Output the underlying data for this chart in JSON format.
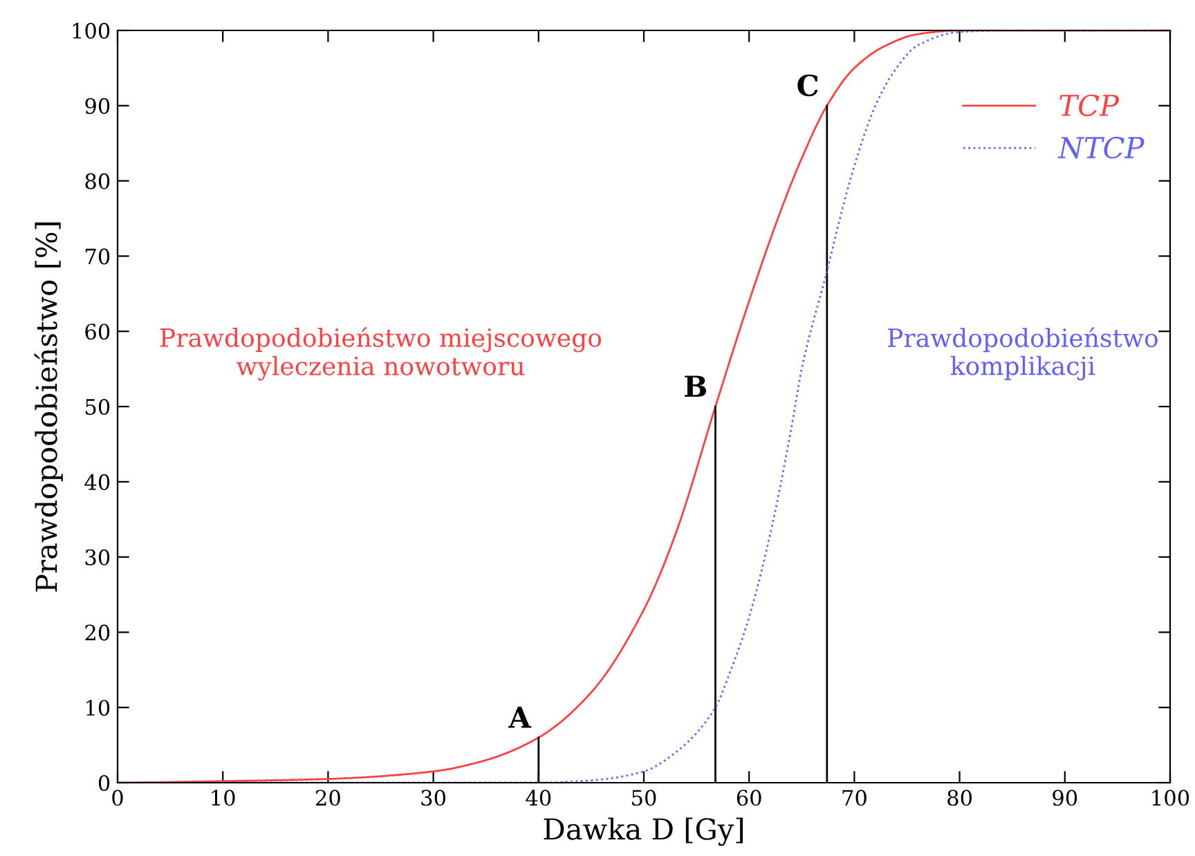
{
  "chart_data": {
    "type": "line",
    "xlabel": "Dawka D [Gy]",
    "ylabel": "Prawdopodobieństwo [%]",
    "xlim": [
      0,
      100
    ],
    "ylim": [
      0,
      100
    ],
    "xticks": [
      0,
      10,
      20,
      30,
      40,
      50,
      60,
      70,
      80,
      90,
      100
    ],
    "yticks": [
      0,
      10,
      20,
      30,
      40,
      50,
      60,
      70,
      80,
      90,
      100
    ],
    "grid": false,
    "legend": "top right",
    "series": [
      {
        "name": "TCP",
        "color": "#ff4040",
        "line_style": "solid",
        "x": [
          0,
          10,
          20,
          30,
          35,
          40,
          45,
          50,
          53,
          56.8,
          60,
          63,
          65,
          67.4,
          70,
          73,
          76,
          80,
          100
        ],
        "values": [
          0,
          0.2,
          0.5,
          1.5,
          3,
          6,
          12,
          23,
          33,
          50,
          64,
          76,
          83,
          90,
          95,
          98,
          99.5,
          100,
          100
        ]
      },
      {
        "color": "#000000",
        "line_style": "solid",
        "x": [
          40,
          40
        ],
        "values": [
          0,
          6
        ]
      },
      {
        "color": "#000000",
        "line_style": "solid",
        "x": [
          56.8,
          56.8
        ],
        "values": [
          0,
          50
        ]
      },
      {
        "color": "#000000",
        "line_style": "solid",
        "x": [
          67.4,
          67.4
        ],
        "values": [
          0,
          90
        ]
      },
      {
        "name": "NTCP",
        "color": "#6060ff",
        "line_style": "dotted",
        "x": [
          0,
          40,
          45,
          50,
          53,
          56.8,
          58,
          60,
          62,
          64,
          65,
          67.4,
          69,
          70,
          72,
          74,
          76,
          80,
          85,
          100
        ],
        "values": [
          0,
          0,
          0.3,
          1.5,
          4,
          10,
          14,
          22,
          33,
          47,
          55,
          68,
          77,
          82,
          90,
          95,
          98,
          99.8,
          100,
          100
        ]
      }
    ],
    "annotations": [
      "Prawdopodobieństwo miejscowego\nwyleczenia nowotworu",
      "Prawdopodobieństwo\nkomplikacji",
      {
        "text": "A",
        "x": 40,
        "y": 6
      },
      {
        "text": "B",
        "x": 56.8,
        "y": 50
      },
      {
        "text": "C",
        "x": 67.4,
        "y": 90
      }
    ]
  }
}
